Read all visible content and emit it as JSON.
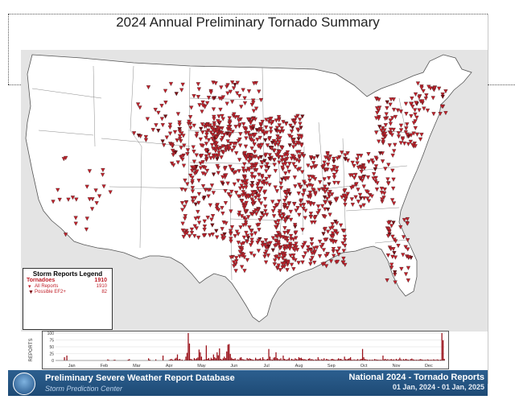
{
  "title": "2024 Annual Preliminary Tornado Summary",
  "legend": {
    "title": "Storm Reports Legend",
    "tornadoes_label": "Tornadoes",
    "tornadoes_count": "1910",
    "all_reports_label": "All Reports",
    "all_reports_count": "1910",
    "ef2_label": "Possible EF2+",
    "ef2_count": "82"
  },
  "histogram": {
    "ylabel": "REPORTS",
    "yticks": [
      "100",
      "75",
      "50",
      "25",
      "0"
    ],
    "months": [
      "Jan",
      "Feb",
      "Mar",
      "Apr",
      "May",
      "Jun",
      "Jul",
      "Aug",
      "Sep",
      "Oct",
      "Nov",
      "Dec"
    ],
    "daily_values": [
      0,
      0,
      0,
      0,
      0,
      0,
      0,
      12,
      0,
      18,
      0,
      0,
      0,
      0,
      0,
      0,
      0,
      0,
      0,
      0,
      0,
      0,
      0,
      0,
      0,
      0,
      0,
      0,
      0,
      0,
      0,
      0,
      0,
      0,
      0,
      0,
      0,
      0,
      0,
      0,
      0,
      0,
      0,
      4,
      2,
      0,
      0,
      0,
      2,
      3,
      0,
      0,
      0,
      0,
      0,
      0,
      0,
      0,
      0,
      0,
      3,
      5,
      0,
      0,
      0,
      0,
      0,
      0,
      0,
      0,
      0,
      0,
      0,
      0,
      0,
      0,
      0,
      8,
      3,
      0,
      0,
      0,
      0,
      4,
      0,
      0,
      0,
      0,
      0,
      18,
      0,
      0,
      0,
      0,
      2,
      4,
      6,
      3,
      2,
      7,
      10,
      22,
      4,
      6,
      2,
      3,
      0,
      2,
      14,
      28,
      100,
      62,
      6,
      4,
      2,
      9,
      5,
      8,
      11,
      40,
      30,
      14,
      2,
      3,
      4,
      55,
      6,
      9,
      3,
      10,
      6,
      22,
      12,
      8,
      30,
      19,
      44,
      6,
      3,
      8,
      14,
      9,
      33,
      58,
      60,
      24,
      10,
      6,
      5,
      8,
      2,
      4,
      3,
      10,
      12,
      5,
      4,
      3,
      2,
      9,
      5,
      8,
      6,
      4,
      3,
      2,
      10,
      5,
      4,
      6,
      8,
      3,
      12,
      5,
      2,
      4,
      6,
      42,
      14,
      4,
      3,
      10,
      12,
      30,
      9,
      5,
      4,
      8,
      2,
      18,
      6,
      4,
      3,
      5,
      10,
      2,
      6,
      4,
      3,
      8,
      5,
      4,
      12,
      9,
      10,
      6,
      4,
      5,
      3,
      2,
      6,
      8,
      4,
      5,
      3,
      2,
      4,
      3,
      12,
      4,
      2,
      5,
      3,
      8,
      2,
      6,
      4,
      3,
      2,
      5,
      6,
      4,
      3,
      2,
      4,
      8,
      5,
      6,
      3,
      2,
      14,
      5,
      4,
      6,
      8,
      12,
      3,
      2,
      4,
      2,
      3,
      5,
      2,
      4,
      6,
      42,
      12,
      5,
      4,
      3,
      2,
      3,
      2,
      3,
      2,
      5,
      4,
      3,
      3,
      2,
      3,
      2,
      18,
      4,
      6,
      3,
      5,
      2,
      4,
      5,
      3,
      4,
      2,
      6,
      3,
      4,
      10,
      4,
      2,
      5,
      3,
      6,
      4,
      3,
      2,
      5,
      7,
      4,
      3,
      2,
      3,
      2,
      3,
      5,
      4,
      3,
      2,
      3,
      2,
      4,
      3,
      2,
      3,
      2,
      4,
      3,
      2,
      4,
      3,
      2,
      3,
      100,
      74,
      6
    ],
    "y_max": 100
  },
  "footer": {
    "left_title": "Preliminary Severe Weather Report Database",
    "left_subtitle": "Storm Prediction Center",
    "right_title": "National  2024 - Tornado Reports",
    "right_dates": "01 Jan, 2024 - 01 Jan, 2025"
  },
  "colors": {
    "marker_fill": "#c0202a",
    "marker_ef2": "#7a0a12",
    "bar": "#9a1019",
    "footer": "#2a5a88"
  },
  "icons": [
    "tornado-report-marker",
    "noaa-logo"
  ]
}
